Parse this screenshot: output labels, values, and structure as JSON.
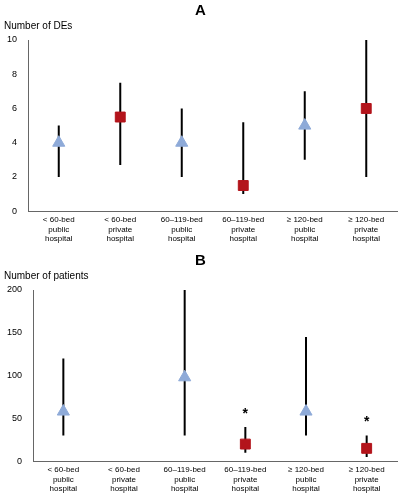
{
  "chart_data": [
    {
      "type": "scatter",
      "title": "A",
      "y_label": "Number of DEs",
      "categories": [
        "< 60-bed public hospital",
        "< 60-bed private hospital",
        "60–119-bed public hospital",
        "60–119-bed private hospital",
        "≥ 120-bed public hospital",
        "≥ 120-bed private hospital"
      ],
      "ylim": [
        0,
        10
      ],
      "yticks": [
        0,
        2,
        4,
        6,
        8,
        10
      ],
      "grid": false,
      "series": [
        {
          "color": "#8eaad8",
          "marker": "triangle",
          "values": [
            4,
            null,
            4,
            null,
            5,
            null
          ],
          "error_low": [
            2,
            null,
            2,
            null,
            3,
            null
          ],
          "error_high": [
            5,
            null,
            6,
            null,
            7,
            null
          ]
        },
        {
          "color": "#b3141b",
          "marker": "square",
          "values": [
            null,
            5.5,
            null,
            1.5,
            null,
            6
          ],
          "error_low": [
            null,
            2.7,
            null,
            1,
            null,
            2
          ],
          "error_high": [
            null,
            7.5,
            null,
            5.2,
            null,
            10
          ]
        }
      ]
    },
    {
      "type": "scatter",
      "title": "B",
      "y_label": "Number of patients",
      "categories": [
        "< 60-bed public hospital",
        "< 60-bed private hospital",
        "60–119-bed public hospital",
        "60–119-bed private hospital",
        "≥ 120-bed public hospital",
        "≥ 120-bed private hospital"
      ],
      "ylim": [
        0,
        200
      ],
      "yticks": [
        0,
        50,
        100,
        150,
        200
      ],
      "grid": false,
      "series": [
        {
          "color": "#8eaad8",
          "marker": "triangle",
          "values": [
            58,
            null,
            98,
            null,
            58,
            null
          ],
          "error_low": [
            30,
            null,
            30,
            null,
            30,
            null
          ],
          "error_high": [
            120,
            null,
            200,
            null,
            145,
            null
          ]
        },
        {
          "color": "#b3141b",
          "marker": "square",
          "values": [
            null,
            null,
            null,
            20,
            null,
            15
          ],
          "error_low": [
            null,
            null,
            null,
            10,
            null,
            5
          ],
          "error_high": [
            null,
            null,
            null,
            40,
            null,
            30
          ]
        }
      ],
      "annotations": [
        {
          "text": "*",
          "category": "60–119-bed private hospital"
        },
        {
          "text": "*",
          "category": "≥ 120-bed private hospital"
        }
      ]
    }
  ]
}
